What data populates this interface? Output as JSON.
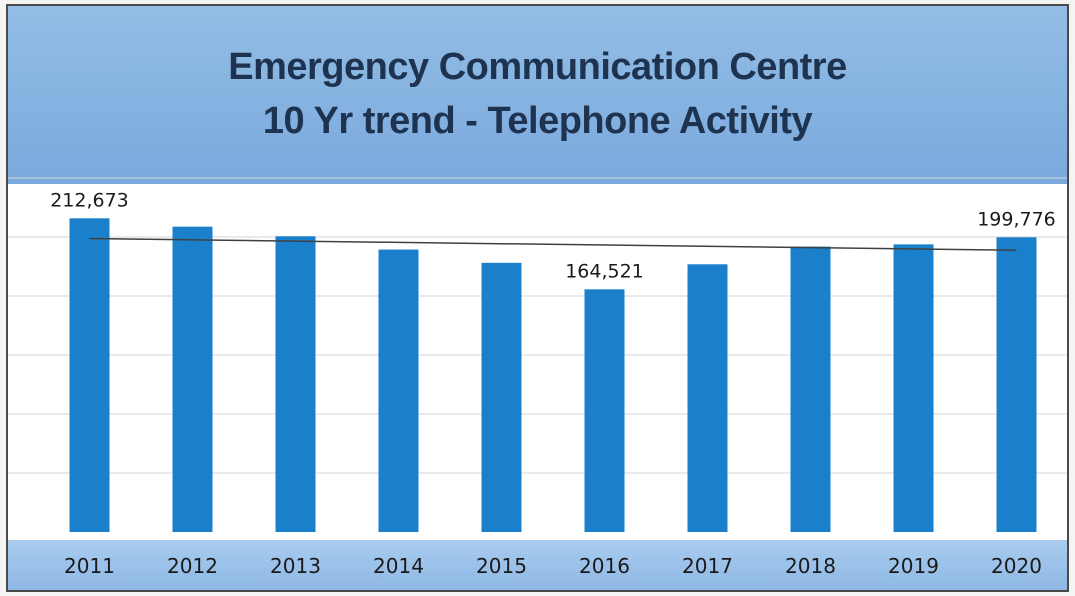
{
  "chart_data": {
    "type": "bar",
    "title": "Emergency Communication Centre\n10 Yr trend - Telephone Activity",
    "title_lines": [
      "Emergency Communication Centre",
      "10 Yr trend - Telephone Activity"
    ],
    "categories": [
      "2011",
      "2012",
      "2013",
      "2014",
      "2015",
      "2016",
      "2017",
      "2018",
      "2019",
      "2020"
    ],
    "values": [
      212673,
      207000,
      200500,
      191500,
      182500,
      164521,
      181500,
      193500,
      195000,
      199776
    ],
    "data_labels": [
      {
        "category": "2011",
        "text": "212,673"
      },
      {
        "category": "2016",
        "text": "164,521"
      },
      {
        "category": "2020",
        "text": "199,776"
      }
    ],
    "trendline": {
      "type": "linear",
      "start": 199000,
      "end": 191000
    },
    "xlabel": "",
    "ylabel": "",
    "ylim": [
      0,
      240000
    ],
    "grid": true,
    "legend": "none",
    "colors": {
      "bar": "#1b80cc",
      "trendline": "#404040",
      "title_band": "#88b5e2",
      "title_text": "#1e3350",
      "grid": "#d4d4d4"
    }
  }
}
